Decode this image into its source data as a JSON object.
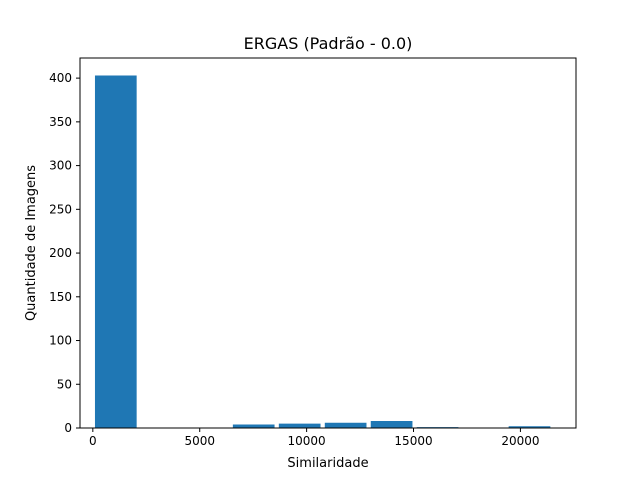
{
  "chart_data": {
    "type": "bar",
    "title": "ERGAS (Padrão - 0.0)",
    "xlabel": "Similaridade",
    "ylabel": "Quantidade de Imagens",
    "xlim": [
      -600,
      22600
    ],
    "ylim": [
      0,
      423
    ],
    "xticks": [
      0,
      5000,
      10000,
      15000,
      20000
    ],
    "xtick_labels": [
      "0",
      "5000",
      "10000",
      "15000",
      "20000"
    ],
    "yticks": [
      0,
      50,
      100,
      150,
      200,
      250,
      300,
      350,
      400
    ],
    "ytick_labels": [
      "0",
      "50",
      "100",
      "150",
      "200",
      "250",
      "300",
      "350",
      "400"
    ],
    "bar_color": "#1f77b4",
    "bins": [
      {
        "x0": 100,
        "x1": 2050,
        "value": 403
      },
      {
        "x0": 2250,
        "x1": 4200,
        "value": 0
      },
      {
        "x0": 4400,
        "x1": 6350,
        "value": 0
      },
      {
        "x0": 6550,
        "x1": 8500,
        "value": 4
      },
      {
        "x0": 8700,
        "x1": 10650,
        "value": 5
      },
      {
        "x0": 10850,
        "x1": 12800,
        "value": 6
      },
      {
        "x0": 13000,
        "x1": 14950,
        "value": 8
      },
      {
        "x0": 15150,
        "x1": 17100,
        "value": 1
      },
      {
        "x0": 17300,
        "x1": 19250,
        "value": 0
      },
      {
        "x0": 19450,
        "x1": 21400,
        "value": 2
      }
    ]
  }
}
